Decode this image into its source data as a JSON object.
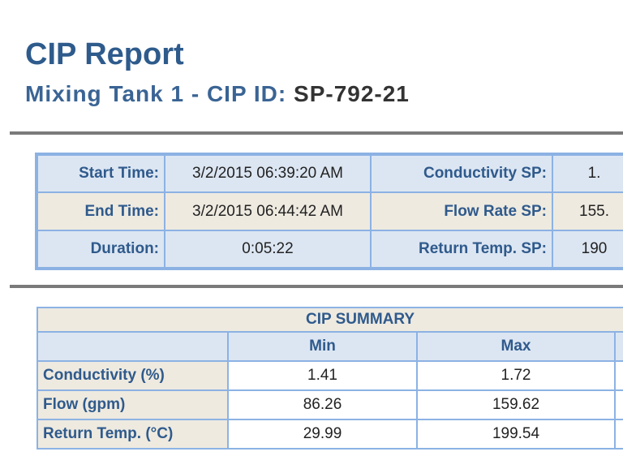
{
  "header": {
    "title": "CIP Report",
    "subtitle_prefix": "Mixing Tank 1 - CIP ID:",
    "cip_id": "SP-792-21"
  },
  "info": {
    "start_label": "Start Time:",
    "start_value": "3/2/2015 06:39:20 AM",
    "end_label": "End Time:",
    "end_value": "3/2/2015 06:44:42 AM",
    "duration_label": "Duration:",
    "duration_value": "0:05:22",
    "cond_sp_label": "Conductivity SP:",
    "cond_sp_value": "1.",
    "flow_sp_label": "Flow Rate SP:",
    "flow_sp_value": "155.",
    "temp_sp_label": "Return Temp. SP:",
    "temp_sp_value": "190"
  },
  "summary": {
    "title": "CIP SUMMARY",
    "columns": [
      "",
      "Min",
      "Max"
    ],
    "rows": [
      {
        "label": "Conductivity (%)",
        "min": "1.41",
        "max": "1.72"
      },
      {
        "label": "Flow (gpm)",
        "min": "86.26",
        "max": "159.62"
      },
      {
        "label": "Return Temp. (°C)",
        "min": "29.99",
        "max": "199.54"
      }
    ]
  }
}
